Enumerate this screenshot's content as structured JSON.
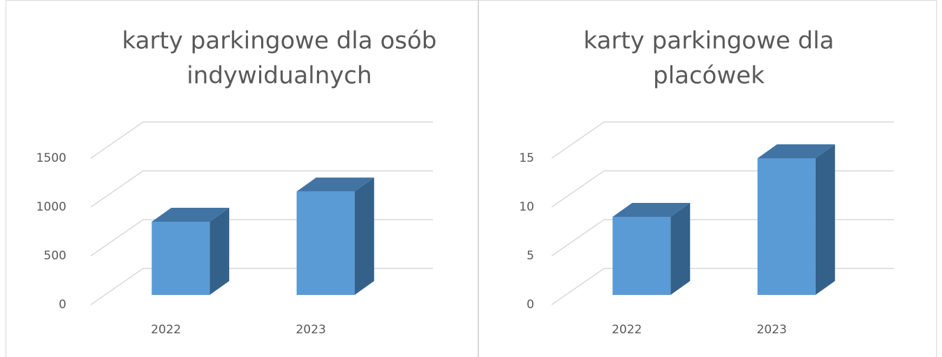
{
  "chart_data": [
    {
      "type": "bar3d",
      "title": [
        "karty parkingowe dla osób",
        "indywidualnych"
      ],
      "categories": [
        "2022",
        "2023"
      ],
      "values": [
        750,
        1060
      ],
      "color": "#5b9bd5",
      "ylim": [
        0,
        1500
      ],
      "yticks": [
        0,
        500,
        1000,
        1500
      ],
      "grid": true
    },
    {
      "type": "bar3d",
      "title": [
        "karty parkingowe dla",
        "placówek"
      ],
      "categories": [
        "2022",
        "2023"
      ],
      "values": [
        8,
        14
      ],
      "color": "#5b9bd5",
      "ylim": [
        0,
        15
      ],
      "yticks": [
        0,
        5,
        10,
        15
      ],
      "grid": true
    }
  ]
}
